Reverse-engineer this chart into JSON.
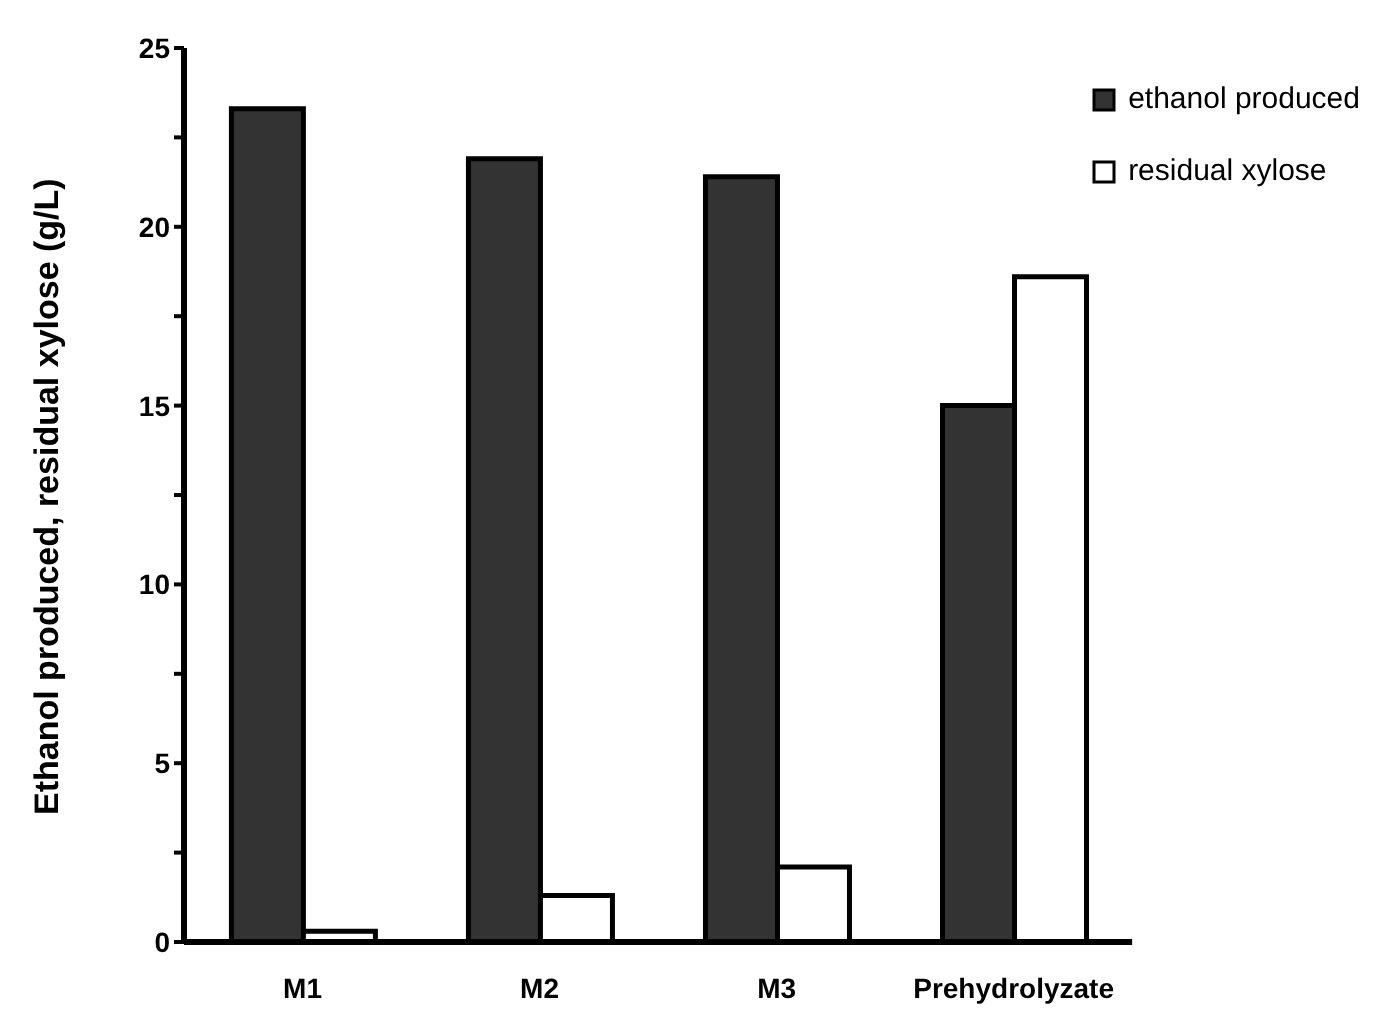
{
  "chart_data": {
    "type": "bar",
    "ylabel": "Ethanol produced, residual xylose (g/L)",
    "categories": [
      "M1",
      "M2",
      "M3",
      "Prehydrolyzate"
    ],
    "series": [
      {
        "name": "ethanol produced",
        "color": "#333333",
        "values": [
          23.3,
          21.9,
          21.4,
          15.0
        ]
      },
      {
        "name": "residual xylose",
        "color": "#ffffff",
        "values": [
          0.3,
          1.3,
          2.1,
          18.6
        ]
      }
    ],
    "ylim": [
      0,
      25
    ],
    "yticks": [
      0,
      {
        "value": 2.5,
        "label": null
      },
      5,
      {
        "value": 7.5,
        "label": null
      },
      10,
      {
        "value": 12.5,
        "label": null
      },
      15,
      {
        "value": 17.5,
        "label": null
      },
      20,
      {
        "value": 22.5,
        "label": null
      },
      25
    ],
    "grid": false,
    "legend": "top right"
  }
}
